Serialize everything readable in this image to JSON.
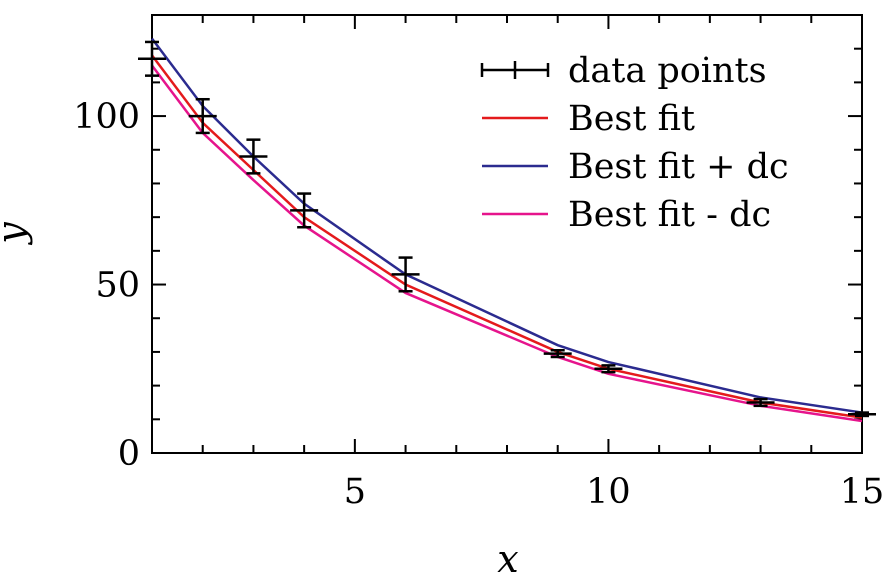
{
  "chart_data": {
    "type": "line",
    "title": "",
    "xlabel": "x",
    "ylabel": "y",
    "xlim": [
      1,
      15
    ],
    "ylim": [
      0,
      130
    ],
    "xticks": [
      5,
      10,
      15
    ],
    "xtick_labels": [
      "5",
      "10",
      "15"
    ],
    "yticks": [
      0,
      50,
      100
    ],
    "ytick_labels": [
      "0",
      "50",
      "100"
    ],
    "x_minor_step": 1,
    "y_minor_step": 10,
    "grid": false,
    "legend_placement": "top-right",
    "error_series": {
      "name": "data points",
      "color": "#000000",
      "points": [
        {
          "x": 1,
          "y": 117,
          "err": 5
        },
        {
          "x": 2,
          "y": 100,
          "err": 5
        },
        {
          "x": 3,
          "y": 88,
          "err": 5
        },
        {
          "x": 4,
          "y": 72,
          "err": 5
        },
        {
          "x": 6,
          "y": 53,
          "err": 5
        },
        {
          "x": 9,
          "y": 29.5,
          "err": 1
        },
        {
          "x": 10,
          "y": 25,
          "err": 1
        },
        {
          "x": 13,
          "y": 15,
          "err": 1
        },
        {
          "x": 15,
          "y": 11.5,
          "err": 0.5
        }
      ]
    },
    "x": [
      1,
      2,
      3,
      4,
      6,
      9,
      10,
      13,
      15
    ],
    "series": [
      {
        "name": "Best fit",
        "color": "#e41a1c",
        "values": [
          118,
          98,
          84,
          70,
          50,
          30,
          25,
          15,
          10.5
        ]
      },
      {
        "name": "Best fit + dc",
        "color": "#2b2b8f",
        "values": [
          123,
          103,
          88,
          74,
          53,
          32,
          27,
          16.5,
          12
        ]
      },
      {
        "name": "Best fit - dc",
        "color": "#e6148c",
        "values": [
          115,
          95,
          81,
          67.5,
          47.5,
          28.5,
          23.5,
          14,
          9.5
        ]
      }
    ]
  }
}
